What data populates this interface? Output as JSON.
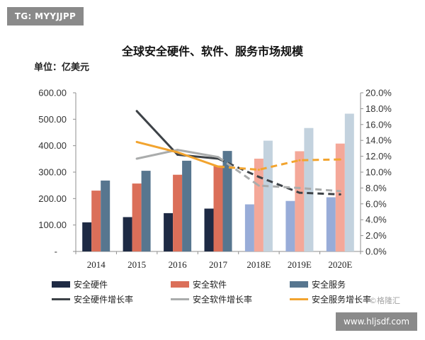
{
  "watermarks": {
    "top_left": "TG: MYYJJPP",
    "bottom_right": "www.hljsdf.com",
    "source": "©格隆汇"
  },
  "chart_data": {
    "type": "bar",
    "title": "全球安全硬件、软件、服务市场规模",
    "ylabel": "单位：亿美元",
    "categories": [
      "2014",
      "2015",
      "2016",
      "2017",
      "2018E",
      "2019E",
      "2020E"
    ],
    "forecast": [
      false,
      false,
      false,
      false,
      true,
      true,
      true
    ],
    "ylim": [
      0,
      600
    ],
    "y_ticks": [
      "600.00",
      "500.00",
      "400.00",
      "300.00",
      "200.00",
      "100.00",
      "-"
    ],
    "y2lim": [
      0,
      20
    ],
    "y2_ticks": [
      "20.0%",
      "18.0%",
      "16.0%",
      "14.0%",
      "12.0%",
      "10.0%",
      "8.0%",
      "6.0%",
      "4.0%",
      "2.0%",
      "0.0%"
    ],
    "series": [
      {
        "name": "安全硬件",
        "values": [
          110,
          130,
          145,
          162,
          178,
          191,
          205
        ],
        "color": "#1e2a44",
        "forecast_color": "#98acd8"
      },
      {
        "name": "安全软件",
        "values": [
          230,
          257,
          290,
          325,
          351,
          379,
          408
        ],
        "color": "#db6f59",
        "forecast_color": "#f4a899"
      },
      {
        "name": "安全服务",
        "values": [
          268,
          305,
          343,
          380,
          419,
          467,
          521
        ],
        "color": "#57768f",
        "forecast_color": "#c3d2de"
      }
    ],
    "line_series": [
      {
        "name": "安全硬件增长率",
        "secondary_axis": true,
        "values": [
          null,
          17.7,
          12.2,
          11.7,
          9.4,
          7.4,
          7.2
        ],
        "color": "#3d4247"
      },
      {
        "name": "安全软件增长率",
        "secondary_axis": true,
        "values": [
          null,
          11.7,
          12.8,
          11.9,
          8.3,
          8.0,
          7.6
        ],
        "color": "#aaacac"
      },
      {
        "name": "安全服务增长率",
        "secondary_axis": true,
        "values": [
          null,
          13.8,
          12.5,
          10.7,
          10.3,
          11.5,
          11.6
        ],
        "color": "#f2a42f"
      }
    ],
    "forecast_lines_dashed": true,
    "legend_position": "bottom",
    "grid": false
  }
}
